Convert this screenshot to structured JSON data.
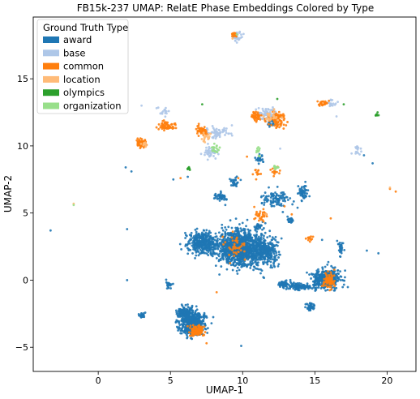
{
  "chart_data": {
    "type": "scatter",
    "title": "FB15k-237 UMAP: RelatE Phase Embeddings Colored by Type",
    "xlabel": "UMAP-1",
    "ylabel": "UMAP-2",
    "xlim": [
      -4.5,
      22.0
    ],
    "ylim": [
      -6.8,
      19.6
    ],
    "xticks": [
      0,
      5,
      10,
      15,
      20
    ],
    "yticks": [
      -5,
      0,
      5,
      10,
      15
    ],
    "grid": false,
    "legend": {
      "title": "Ground Truth Type",
      "placement": "top-left",
      "entries": [
        {
          "name": "award",
          "color": "#1f77b4"
        },
        {
          "name": "base",
          "color": "#aec7e8"
        },
        {
          "name": "common",
          "color": "#ff7f0e"
        },
        {
          "name": "location",
          "color": "#ffbb78"
        },
        {
          "name": "olympics",
          "color": "#2ca02c"
        },
        {
          "name": "organization",
          "color": "#98df8a"
        }
      ]
    },
    "series": [
      {
        "name": "award",
        "color": "#1f77b4",
        "clusters": [
          {
            "center": [
              9.8,
              2.4
            ],
            "spread": [
              1.3,
              1.2
            ],
            "count": 1200
          },
          {
            "center": [
              7.2,
              2.8
            ],
            "spread": [
              0.9,
              0.8
            ],
            "count": 350
          },
          {
            "center": [
              11.6,
              2.2
            ],
            "spread": [
              0.8,
              0.9
            ],
            "count": 300
          },
          {
            "center": [
              6.5,
              -3.2
            ],
            "spread": [
              0.8,
              0.8
            ],
            "count": 500
          },
          {
            "center": [
              6.0,
              -2.4
            ],
            "spread": [
              0.5,
              0.4
            ],
            "count": 120
          },
          {
            "center": [
              15.8,
              0.1
            ],
            "spread": [
              0.8,
              0.6
            ],
            "count": 450
          },
          {
            "center": [
              14.0,
              -0.5
            ],
            "spread": [
              0.9,
              0.2
            ],
            "count": 120
          },
          {
            "center": [
              12.8,
              -0.3
            ],
            "spread": [
              0.4,
              0.2
            ],
            "count": 50
          },
          {
            "center": [
              14.7,
              -2.0
            ],
            "spread": [
              0.3,
              0.3
            ],
            "count": 40
          },
          {
            "center": [
              12.3,
              6.0
            ],
            "spread": [
              0.8,
              0.6
            ],
            "count": 100
          },
          {
            "center": [
              14.2,
              6.5
            ],
            "spread": [
              0.3,
              0.5
            ],
            "count": 50
          },
          {
            "center": [
              8.5,
              6.2
            ],
            "spread": [
              0.4,
              0.3
            ],
            "count": 40
          },
          {
            "center": [
              9.5,
              7.3
            ],
            "spread": [
              0.3,
              0.3
            ],
            "count": 30
          },
          {
            "center": [
              11.2,
              9.0
            ],
            "spread": [
              0.3,
              0.3
            ],
            "count": 30
          },
          {
            "center": [
              3.0,
              -2.6
            ],
            "spread": [
              0.2,
              0.2
            ],
            "count": 20
          },
          {
            "center": [
              4.9,
              -0.3
            ],
            "spread": [
              0.2,
              0.3
            ],
            "count": 20
          },
          {
            "center": [
              16.8,
              2.5
            ],
            "spread": [
              0.2,
              0.6
            ],
            "count": 30
          },
          {
            "center": [
              13.3,
              4.5
            ],
            "spread": [
              0.2,
              0.2
            ],
            "count": 20
          },
          {
            "center": [
              11.0,
              4.0
            ],
            "spread": [
              0.3,
              0.2
            ],
            "count": 25
          },
          {
            "center": [
              12.0,
              11.8
            ],
            "spread": [
              0.3,
              0.4
            ],
            "count": 30
          }
        ],
        "points": [
          [
            -3.3,
            3.7
          ],
          [
            2.0,
            3.8
          ],
          [
            1.9,
            8.4
          ],
          [
            2.3,
            8.1
          ],
          [
            2.0,
            0.0
          ],
          [
            18.6,
            2.2
          ],
          [
            19.4,
            2.0
          ],
          [
            18.4,
            9.3
          ],
          [
            19.0,
            8.7
          ],
          [
            9.9,
            -4.9
          ],
          [
            6.2,
            7.7
          ],
          [
            5.2,
            7.5
          ],
          [
            15.7,
            13.2
          ],
          [
            15.5,
            3.0
          ],
          [
            8.8,
            5.6
          ]
        ]
      },
      {
        "name": "base",
        "color": "#aec7e8",
        "clusters": [
          {
            "center": [
              9.6,
              18.1
            ],
            "spread": [
              0.3,
              0.3
            ],
            "count": 35
          },
          {
            "center": [
              7.8,
              9.5
            ],
            "spread": [
              0.4,
              0.4
            ],
            "count": 45
          },
          {
            "center": [
              8.2,
              11.0
            ],
            "spread": [
              0.8,
              0.4
            ],
            "count": 60
          },
          {
            "center": [
              11.8,
              12.3
            ],
            "spread": [
              0.8,
              0.5
            ],
            "count": 70
          },
          {
            "center": [
              18.0,
              9.7
            ],
            "spread": [
              0.3,
              0.3
            ],
            "count": 15
          },
          {
            "center": [
              4.6,
              12.5
            ],
            "spread": [
              0.4,
              0.4
            ],
            "count": 15
          },
          {
            "center": [
              16.2,
              13.2
            ],
            "spread": [
              0.3,
              0.2
            ],
            "count": 15
          }
        ],
        "points": [
          [
            3.0,
            13.0
          ],
          [
            16.5,
            12.2
          ],
          [
            12.6,
            9.8
          ]
        ]
      },
      {
        "name": "common",
        "color": "#ff7f0e",
        "clusters": [
          {
            "center": [
              3.0,
              10.2
            ],
            "spread": [
              0.3,
              0.3
            ],
            "count": 80
          },
          {
            "center": [
              4.7,
              11.5
            ],
            "spread": [
              0.5,
              0.3
            ],
            "count": 60
          },
          {
            "center": [
              7.2,
              11.1
            ],
            "spread": [
              0.4,
              0.4
            ],
            "count": 50
          },
          {
            "center": [
              12.4,
              12.0
            ],
            "spread": [
              0.5,
              0.5
            ],
            "count": 110
          },
          {
            "center": [
              10.9,
              12.2
            ],
            "spread": [
              0.3,
              0.3
            ],
            "count": 45
          },
          {
            "center": [
              16.0,
              0.0
            ],
            "spread": [
              0.4,
              0.5
            ],
            "count": 80
          },
          {
            "center": [
              6.8,
              -3.8
            ],
            "spread": [
              0.5,
              0.4
            ],
            "count": 90
          },
          {
            "center": [
              15.6,
              13.2
            ],
            "spread": [
              0.3,
              0.2
            ],
            "count": 25
          },
          {
            "center": [
              9.4,
              18.3
            ],
            "spread": [
              0.2,
              0.2
            ],
            "count": 15
          },
          {
            "center": [
              11.2,
              4.8
            ],
            "spread": [
              0.4,
              0.4
            ],
            "count": 30
          },
          {
            "center": [
              14.7,
              3.1
            ],
            "spread": [
              0.2,
              0.2
            ],
            "count": 12
          },
          {
            "center": [
              9.4,
              2.5
            ],
            "spread": [
              0.8,
              0.8
            ],
            "count": 40
          },
          {
            "center": [
              12.3,
              8.2
            ],
            "spread": [
              0.3,
              0.3
            ],
            "count": 15
          },
          {
            "center": [
              11.0,
              8.1
            ],
            "spread": [
              0.3,
              0.3
            ],
            "count": 12
          }
        ],
        "points": [
          [
            20.6,
            6.6
          ],
          [
            20.2,
            6.8
          ],
          [
            10.3,
            9.2
          ],
          [
            9.7,
            7.6
          ],
          [
            13.4,
            4.9
          ],
          [
            16.1,
            4.6
          ],
          [
            12.9,
            5.5
          ],
          [
            5.7,
            7.6
          ],
          [
            8.2,
            -0.9
          ],
          [
            7.5,
            -4.7
          ]
        ]
      },
      {
        "name": "location",
        "color": "#ffbb78",
        "clusters": [
          {
            "center": [
              12.0,
              12.2
            ],
            "spread": [
              0.5,
              0.4
            ],
            "count": 25
          },
          {
            "center": [
              7.5,
              10.6
            ],
            "spread": [
              0.4,
              0.3
            ],
            "count": 20
          },
          {
            "center": [
              3.2,
              10.1
            ],
            "spread": [
              0.2,
              0.2
            ],
            "count": 10
          }
        ],
        "points": [
          [
            20.2,
            6.9
          ],
          [
            -1.7,
            5.7
          ],
          [
            11.6,
            4.9
          ],
          [
            9.3,
            18.0
          ]
        ]
      },
      {
        "name": "olympics",
        "color": "#2ca02c",
        "clusters": [
          {
            "center": [
              19.3,
              12.3
            ],
            "spread": [
              0.1,
              0.1
            ],
            "count": 10
          },
          {
            "center": [
              6.3,
              8.3
            ],
            "spread": [
              0.1,
              0.1
            ],
            "count": 10
          }
        ],
        "points": [
          [
            17.0,
            13.1
          ],
          [
            12.4,
            13.5
          ],
          [
            7.2,
            13.1
          ]
        ]
      },
      {
        "name": "organization",
        "color": "#98df8a",
        "clusters": [
          {
            "center": [
              8.0,
              9.8
            ],
            "spread": [
              0.4,
              0.3
            ],
            "count": 20
          },
          {
            "center": [
              12.3,
              8.4
            ],
            "spread": [
              0.2,
              0.1
            ],
            "count": 12
          },
          {
            "center": [
              11.1,
              9.7
            ],
            "spread": [
              0.2,
              0.5
            ],
            "count": 10
          }
        ],
        "points": [
          [
            -1.7,
            5.6
          ],
          [
            9.6,
            18.3
          ]
        ]
      }
    ]
  }
}
